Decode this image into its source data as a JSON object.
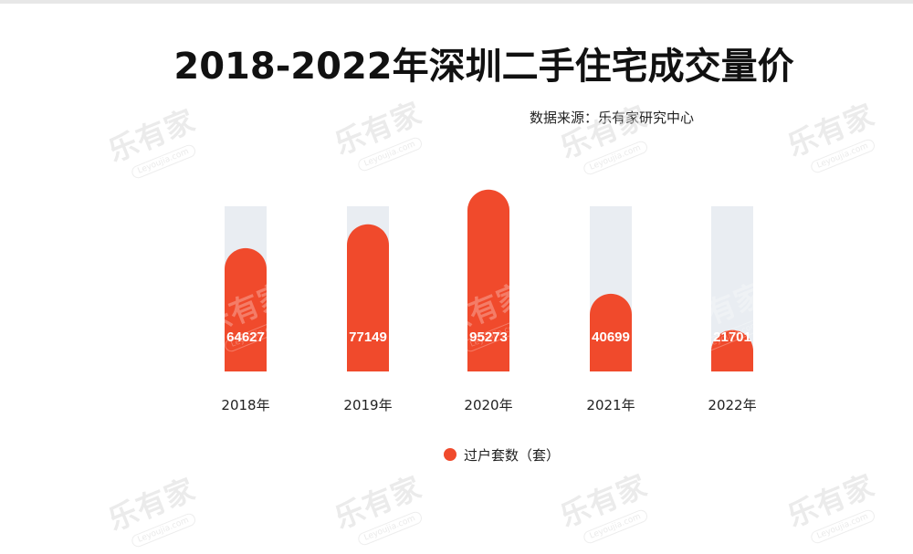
{
  "chart_data": {
    "type": "bar",
    "title": "2018-2022年深圳二手住宅成交量价",
    "source": "数据来源：乐有家研究中心",
    "categories": [
      "2018年",
      "2019年",
      "2020年",
      "2021年",
      "2022年"
    ],
    "series": [
      {
        "name": "过户套数（套）",
        "values": [
          64627,
          77149,
          95273,
          40699,
          21701
        ],
        "color": "#f04a2c"
      }
    ],
    "ylim": [
      0,
      110000
    ],
    "track_color": "#e9edf2",
    "grid": false,
    "legend_position": "bottom-center"
  },
  "watermark": {
    "text": "乐有家",
    "subtext": "Leyoujia.com"
  }
}
